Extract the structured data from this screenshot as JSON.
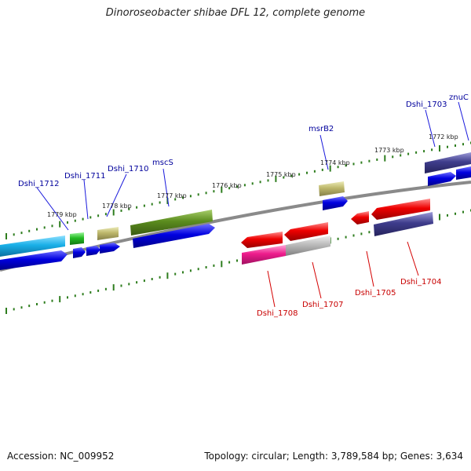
{
  "title": "Dinoroseobacter shibae DFL 12, complete genome",
  "footer": {
    "accession": "Accession: NC_009952",
    "summary": "Topology: circular; Length: 3,789,584 bp; Genes: 3,634"
  },
  "colors": {
    "backbone": "#888888",
    "tick": "#2e7d1e",
    "label_forward": "#00009c",
    "label_reverse": "#c80000",
    "callout_forward": "#1a1adc",
    "callout_reverse": "#d40000"
  },
  "chart_data": {
    "type": "genome-map",
    "scale_labels": [
      {
        "label": "1779 kbp",
        "kbp": 1779
      },
      {
        "label": "1778 kbp",
        "kbp": 1778
      },
      {
        "label": "1777 kbp",
        "kbp": 1777
      },
      {
        "label": "1776 kbp",
        "kbp": 1776
      },
      {
        "label": "1775 kbp",
        "kbp": 1775
      },
      {
        "label": "1774 kbp",
        "kbp": 1774
      },
      {
        "label": "1773 kbp",
        "kbp": 1773
      },
      {
        "label": "1772 kbp",
        "kbp": 1772
      }
    ],
    "gene_labels": [
      {
        "name": "Dshi_1712",
        "strand": "forward"
      },
      {
        "name": "Dshi_1711",
        "strand": "forward"
      },
      {
        "name": "Dshi_1710",
        "strand": "forward"
      },
      {
        "name": "mscS",
        "strand": "forward"
      },
      {
        "name": "msrB2",
        "strand": "forward"
      },
      {
        "name": "Dshi_1703",
        "strand": "forward"
      },
      {
        "name": "znuC",
        "strand": "forward"
      },
      {
        "name": "Dshi_1708",
        "strand": "reverse"
      },
      {
        "name": "Dshi_1707",
        "strand": "reverse"
      },
      {
        "name": "Dshi_1705",
        "strand": "reverse"
      },
      {
        "name": "Dshi_1704",
        "strand": "reverse"
      }
    ],
    "features": [
      {
        "id": "fwd-cyan-cds",
        "color": "#1ab0e8"
      },
      {
        "id": "fwd-blue-1",
        "color": "#0000e0"
      },
      {
        "id": "dshi1711-rna",
        "color": "#22bb22"
      },
      {
        "id": "dshi1711-blue",
        "color": "#0000e0"
      },
      {
        "id": "blue-small-2",
        "color": "#0000e0"
      },
      {
        "id": "dshi1710-khaki",
        "color": "#bdb76b"
      },
      {
        "id": "dshi1710-blue",
        "color": "#0000e0"
      },
      {
        "id": "mscS-olive",
        "color": "#5b8c1e"
      },
      {
        "id": "mscS-blue",
        "color": "#0000e0"
      },
      {
        "id": "msrB2-khaki",
        "color": "#bdb76b"
      },
      {
        "id": "msrB2-blue",
        "color": "#0000e0"
      },
      {
        "id": "dshi1703-slate",
        "color": "#3f3d8c"
      },
      {
        "id": "dshi1703-blue",
        "color": "#0000e0"
      },
      {
        "id": "znuC-blue",
        "color": "#0000e0"
      },
      {
        "id": "dshi1708-red",
        "color": "#ee0000"
      },
      {
        "id": "dshi1708-pink",
        "color": "#ee1c8c"
      },
      {
        "id": "dshi1707-red",
        "color": "#ee0000"
      },
      {
        "id": "dshi1707-gray",
        "color": "#aaaaaa"
      },
      {
        "id": "dshi1705-red",
        "color": "#ee0000"
      },
      {
        "id": "dshi1704-red",
        "color": "#ee0000"
      },
      {
        "id": "dshi1704-slate",
        "color": "#3f3d8c"
      }
    ]
  }
}
